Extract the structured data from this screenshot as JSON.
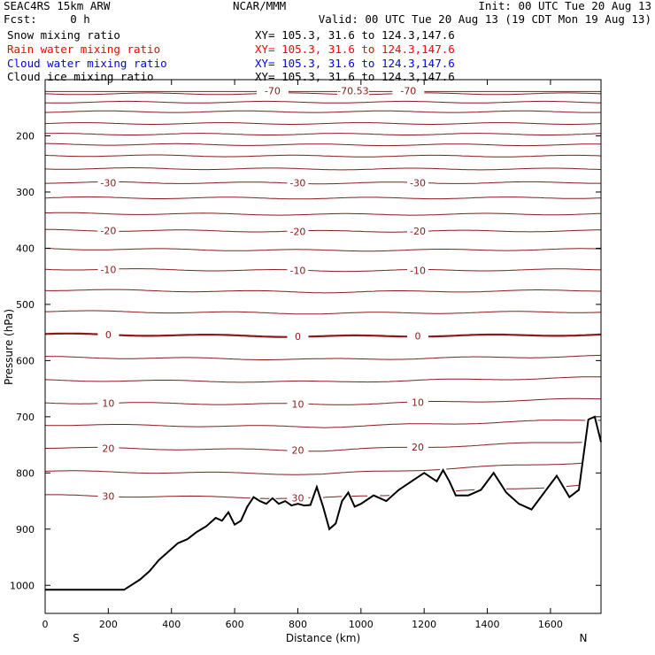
{
  "header": {
    "model": "SEAC4RS 15km ARW",
    "org": "NCAR/MMM",
    "init": "Init: 00 UTC Tue 20 Aug 13",
    "fcst": "Fcst:     0 h",
    "valid": "Valid: 00 UTC Tue 20 Aug 13 (19 CDT Mon 19 Aug 13)",
    "fields": [
      {
        "name": "Snow mixing ratio",
        "xy": "XY= 105.3, 31.6 to 124.3,147.6",
        "color": "#000000"
      },
      {
        "name": "Rain water mixing ratio",
        "xy": "XY= 105.3, 31.6 to 124.3,147.6",
        "color": "#ff0000"
      },
      {
        "name": "Cloud water mixing ratio",
        "xy": "XY= 105.3, 31.6 to 124.3,147.6",
        "color": "#0000ff"
      },
      {
        "name": "Cloud ice mixing ratio",
        "xy": "XY= 105.3, 31.6 to 124.3,147.6",
        "color": "#000000"
      }
    ]
  },
  "colors": {
    "contour": "#8b1a1a",
    "terrain": "#000000",
    "axis": "#000000"
  },
  "chart_data": {
    "type": "line",
    "xlabel": "Distance (km)",
    "ylabel": "Pressure (hPa)",
    "xlim": [
      0,
      1760
    ],
    "ylim": [
      1050,
      100
    ],
    "xticks": [
      0,
      200,
      400,
      600,
      800,
      1000,
      1200,
      1400,
      1600
    ],
    "yticks": [
      200,
      300,
      400,
      500,
      600,
      700,
      800,
      900,
      1000
    ],
    "xtick_labels": [
      "0",
      "200",
      "400",
      "600",
      "800",
      "1000",
      "1200",
      "1400",
      "1600"
    ],
    "ytick_labels": [
      "200",
      "300",
      "400",
      "500",
      "600",
      "700",
      "800",
      "900",
      "1000"
    ],
    "end_labels": {
      "left": "S",
      "right": "N"
    },
    "terrain": {
      "x": [
        0,
        250,
        300,
        330,
        360,
        390,
        420,
        450,
        480,
        510,
        540,
        560,
        580,
        600,
        620,
        640,
        660,
        680,
        700,
        720,
        740,
        760,
        780,
        800,
        820,
        840,
        860,
        880,
        900,
        920,
        940,
        960,
        980,
        1000,
        1040,
        1080,
        1120,
        1160,
        1200,
        1240,
        1260,
        1280,
        1300,
        1340,
        1380,
        1420,
        1460,
        1500,
        1540,
        1580,
        1620,
        1660,
        1690,
        1720,
        1740,
        1760
      ],
      "pressure": [
        1008,
        1008,
        990,
        975,
        955,
        940,
        925,
        918,
        905,
        895,
        880,
        885,
        870,
        892,
        885,
        860,
        843,
        850,
        855,
        845,
        855,
        850,
        858,
        855,
        858,
        857,
        825,
        860,
        900,
        890,
        850,
        835,
        860,
        855,
        840,
        850,
        830,
        815,
        800,
        815,
        795,
        815,
        840,
        840,
        830,
        800,
        835,
        855,
        865,
        835,
        805,
        843,
        830,
        705,
        700,
        745
      ]
    },
    "isotherm_levels": [
      {
        "temp": -70,
        "labels": [
          -70,
          "-70.53",
          -70
        ]
      },
      {
        "temp": -30,
        "labels": [
          -30,
          -30,
          -30
        ]
      },
      {
        "temp": -20,
        "labels": [
          -20,
          -20,
          -20
        ]
      },
      {
        "temp": -10,
        "labels": [
          -10,
          -10,
          -10
        ]
      },
      {
        "temp": 0,
        "labels": [
          0,
          0,
          0
        ]
      },
      {
        "temp": 10,
        "labels": [
          10,
          10,
          10
        ]
      },
      {
        "temp": 20,
        "labels": [
          20,
          20,
          20
        ]
      },
      {
        "temp": 30,
        "labels": [
          30,
          30,
          30
        ]
      }
    ],
    "isotherms": [
      {
        "label": "",
        "pressure": [
          125,
          125,
          125
        ]
      },
      {
        "label": "",
        "pressure": [
          140,
          140,
          140
        ]
      },
      {
        "label": "",
        "pressure": [
          157,
          157,
          157
        ]
      },
      {
        "label": "",
        "pressure": [
          178,
          178,
          178
        ]
      },
      {
        "label": "",
        "pressure": [
          197,
          197,
          197
        ]
      },
      {
        "label": "",
        "pressure": [
          215,
          216,
          216
        ]
      },
      {
        "label": "",
        "pressure": [
          235,
          236,
          236
        ]
      },
      {
        "label": "",
        "pressure": [
          258,
          259,
          259
        ]
      },
      {
        "label": "-30",
        "pressure": [
          283,
          284,
          283
        ]
      },
      {
        "label": "",
        "pressure": [
          310,
          311,
          310
        ]
      },
      {
        "label": "",
        "pressure": [
          338,
          340,
          339
        ]
      },
      {
        "label": "-20",
        "pressure": [
          368,
          370,
          369
        ]
      },
      {
        "label": "",
        "pressure": [
          401,
          404,
          402
        ]
      },
      {
        "label": "-10",
        "pressure": [
          437,
          440,
          438
        ]
      },
      {
        "label": "",
        "pressure": [
          474,
          478,
          475
        ]
      },
      {
        "label": "",
        "pressure": [
          512,
          516,
          513
        ]
      },
      {
        "label": "0",
        "pressure": [
          553,
          557,
          554
        ]
      },
      {
        "label": "",
        "pressure": [
          594,
          598,
          592
        ]
      },
      {
        "label": "",
        "pressure": [
          635,
          638,
          630
        ]
      },
      {
        "label": "10",
        "pressure": [
          675,
          678,
          668
        ]
      },
      {
        "label": "",
        "pressure": [
          714,
          718,
          705
        ]
      },
      {
        "label": "20",
        "pressure": [
          755,
          760,
          743
        ]
      },
      {
        "label": "",
        "pressure": [
          797,
          802,
          780
        ]
      },
      {
        "label": "30",
        "pressure": [
          840,
          845,
          820
        ]
      }
    ]
  }
}
